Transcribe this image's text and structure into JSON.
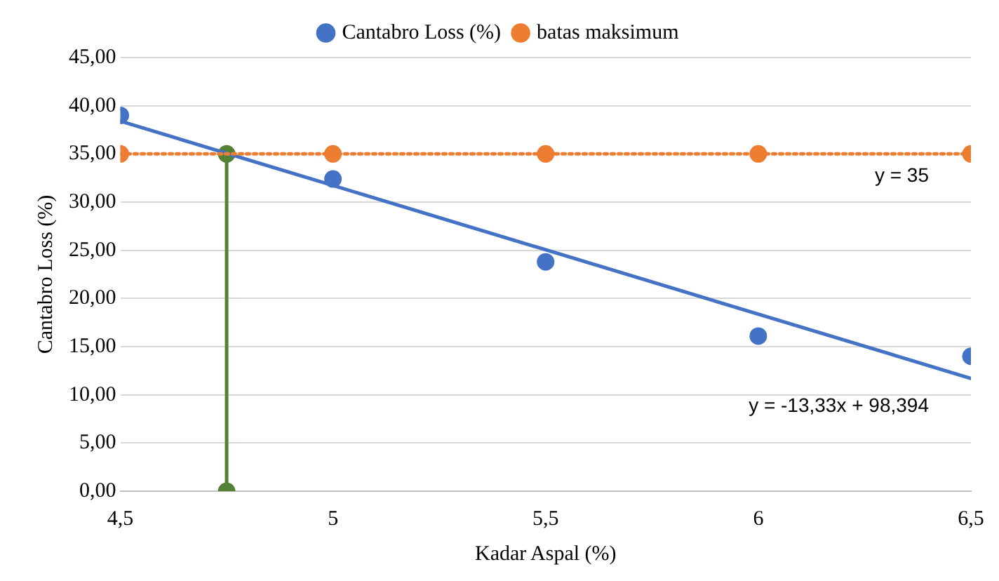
{
  "chart_data": {
    "type": "scatter",
    "xlabel": "Kadar Aspal (%)",
    "ylabel": "Cantabro Loss (%)",
    "xlim": [
      4.5,
      6.5
    ],
    "xticks": [
      {
        "value": 4.5,
        "label": "4,5"
      },
      5,
      {
        "value": 5.5,
        "label": "5,5"
      },
      6,
      {
        "value": 6.5,
        "label": "6,5"
      }
    ],
    "ylim": [
      0,
      45
    ],
    "yticks": [
      {
        "value": 0,
        "label": "0,00"
      },
      {
        "value": 5,
        "label": "5,00"
      },
      {
        "value": 10,
        "label": "10,00"
      },
      {
        "value": 15,
        "label": "15,00"
      },
      {
        "value": 20,
        "label": "20,00"
      },
      {
        "value": 25,
        "label": "25,00"
      },
      {
        "value": 30,
        "label": "30,00"
      },
      {
        "value": 35,
        "label": "35,00"
      },
      {
        "value": 40,
        "label": "40,00"
      },
      {
        "value": 45,
        "label": "45,00"
      }
    ],
    "grid": "y",
    "legend": "top",
    "marker": "circle",
    "series": [
      {
        "name": "Cantabro Loss (%)",
        "color": "#4472c4",
        "x": [
          4.5,
          5,
          5.5,
          6,
          6.5
        ],
        "values": [
          39.0,
          32.4,
          23.8,
          16.1,
          14.0
        ]
      },
      {
        "name": "batas maksimum",
        "type": "line",
        "line_style": "dotted",
        "color": "#ed7d31",
        "x": [
          4.5,
          5,
          5.5,
          6,
          6.5
        ],
        "values": [
          35,
          35,
          35,
          35,
          35
        ]
      },
      {
        "type": "line",
        "marker": "none",
        "line_style": "solid",
        "color": "#4472c4",
        "x": [
          4.5,
          6.5
        ],
        "values": [
          38.4,
          11.7
        ]
      },
      {
        "type": "line",
        "line_style": "solid",
        "color": "#548235",
        "x": [
          4.75,
          4.75
        ],
        "values": [
          0,
          35
        ]
      }
    ],
    "annotations": [
      "y = 35",
      "y = -13,33x + 98,394"
    ]
  }
}
